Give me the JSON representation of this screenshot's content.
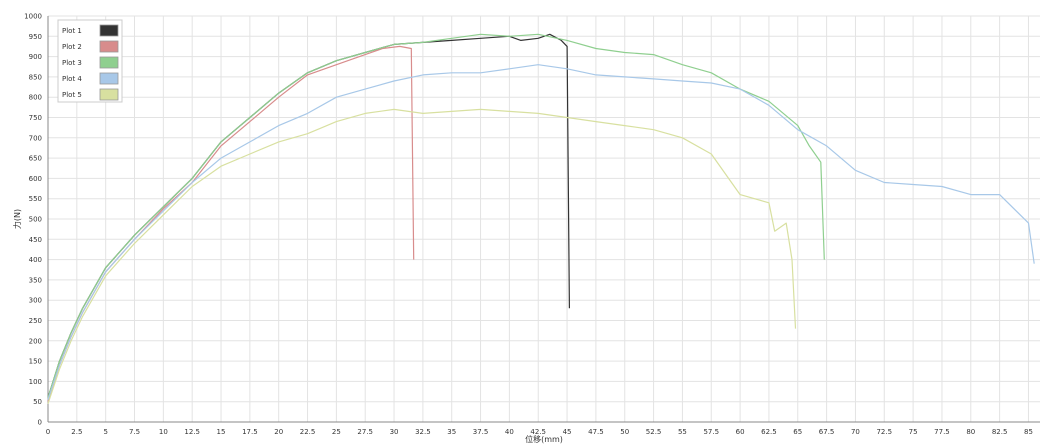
{
  "chart_data": {
    "type": "line",
    "title": "",
    "xlabel": "位移(mm)",
    "ylabel": "力(N)",
    "xlim": [
      0,
      86
    ],
    "ylim": [
      0,
      1000
    ],
    "x_ticks": [
      "0",
      "2.5",
      "5",
      "7.5",
      "10",
      "12.5",
      "15",
      "17.5",
      "20",
      "22.5",
      "25",
      "27.5",
      "30",
      "32.5",
      "35",
      "37.5",
      "40",
      "42.5",
      "45",
      "47.5",
      "50",
      "52.5",
      "55",
      "57.5",
      "60",
      "62.5",
      "65",
      "67.5",
      "70",
      "72.5",
      "75",
      "77.5",
      "80",
      "82.5",
      "85"
    ],
    "y_ticks": [
      "0",
      "50",
      "100",
      "150",
      "200",
      "250",
      "300",
      "350",
      "400",
      "450",
      "500",
      "550",
      "600",
      "650",
      "700",
      "750",
      "800",
      "850",
      "900",
      "950",
      "1000"
    ],
    "grid": true,
    "legend_position": "top-left",
    "series": [
      {
        "name": "Plot 1",
        "color": "#333333",
        "x": [
          0,
          1,
          2,
          3,
          5,
          7.5,
          10,
          12.5,
          15,
          17.5,
          20,
          22.5,
          25,
          27.5,
          30,
          32.5,
          35,
          37.5,
          40,
          41,
          42.5,
          43.5,
          44.5,
          45,
          45.2
        ],
        "y": [
          60,
          150,
          220,
          280,
          380,
          460,
          530,
          600,
          690,
          750,
          810,
          860,
          890,
          910,
          930,
          935,
          940,
          945,
          950,
          940,
          945,
          955,
          940,
          925,
          280
        ]
      },
      {
        "name": "Plot 2",
        "color": "#d88c8c",
        "x": [
          0,
          1,
          2,
          3,
          5,
          7.5,
          10,
          12.5,
          15,
          17.5,
          20,
          22.5,
          25,
          27.5,
          29,
          30.5,
          31.5,
          31.7
        ],
        "y": [
          50,
          140,
          210,
          270,
          370,
          450,
          525,
          590,
          680,
          740,
          800,
          855,
          880,
          905,
          920,
          925,
          920,
          400
        ]
      },
      {
        "name": "Plot 3",
        "color": "#8fcf8f",
        "x": [
          0,
          1,
          2,
          3,
          5,
          7.5,
          10,
          12.5,
          15,
          17.5,
          20,
          22.5,
          25,
          27.5,
          30,
          32.5,
          35,
          37.5,
          40,
          42.5,
          45,
          47.5,
          50,
          52.5,
          55,
          57.5,
          60,
          62.5,
          65,
          66,
          67,
          67.3
        ],
        "y": [
          60,
          150,
          220,
          280,
          380,
          460,
          530,
          600,
          690,
          750,
          810,
          860,
          890,
          910,
          930,
          935,
          945,
          955,
          950,
          955,
          940,
          920,
          910,
          905,
          880,
          860,
          820,
          790,
          730,
          680,
          640,
          400
        ]
      },
      {
        "name": "Plot 4",
        "color": "#a8c8e8",
        "x": [
          0,
          1,
          2,
          3,
          5,
          7.5,
          10,
          12.5,
          15,
          17.5,
          20,
          22.5,
          25,
          27.5,
          30,
          32.5,
          35,
          37.5,
          40,
          42.5,
          45,
          47.5,
          50,
          52.5,
          55,
          57.5,
          60,
          62.5,
          65,
          67.5,
          70,
          72.5,
          75,
          77.5,
          80,
          82.5,
          85,
          85.5
        ],
        "y": [
          55,
          140,
          210,
          270,
          370,
          450,
          520,
          590,
          650,
          690,
          730,
          760,
          800,
          820,
          840,
          855,
          860,
          860,
          870,
          880,
          870,
          855,
          850,
          845,
          840,
          835,
          820,
          780,
          720,
          680,
          620,
          590,
          585,
          580,
          560,
          560,
          490,
          390
        ]
      },
      {
        "name": "Plot 5",
        "color": "#d8e0a0",
        "x": [
          0,
          1,
          2,
          3,
          5,
          7.5,
          10,
          12.5,
          15,
          17.5,
          20,
          22.5,
          25,
          27.5,
          30,
          32.5,
          35,
          37.5,
          40,
          42.5,
          45,
          47.5,
          50,
          52.5,
          55,
          57.5,
          60,
          62.5,
          63,
          64,
          64.5,
          64.8
        ],
        "y": [
          45,
          130,
          200,
          260,
          360,
          440,
          510,
          580,
          630,
          660,
          690,
          710,
          740,
          760,
          770,
          760,
          765,
          770,
          765,
          760,
          750,
          740,
          730,
          720,
          700,
          660,
          560,
          540,
          470,
          490,
          400,
          230
        ]
      }
    ]
  }
}
